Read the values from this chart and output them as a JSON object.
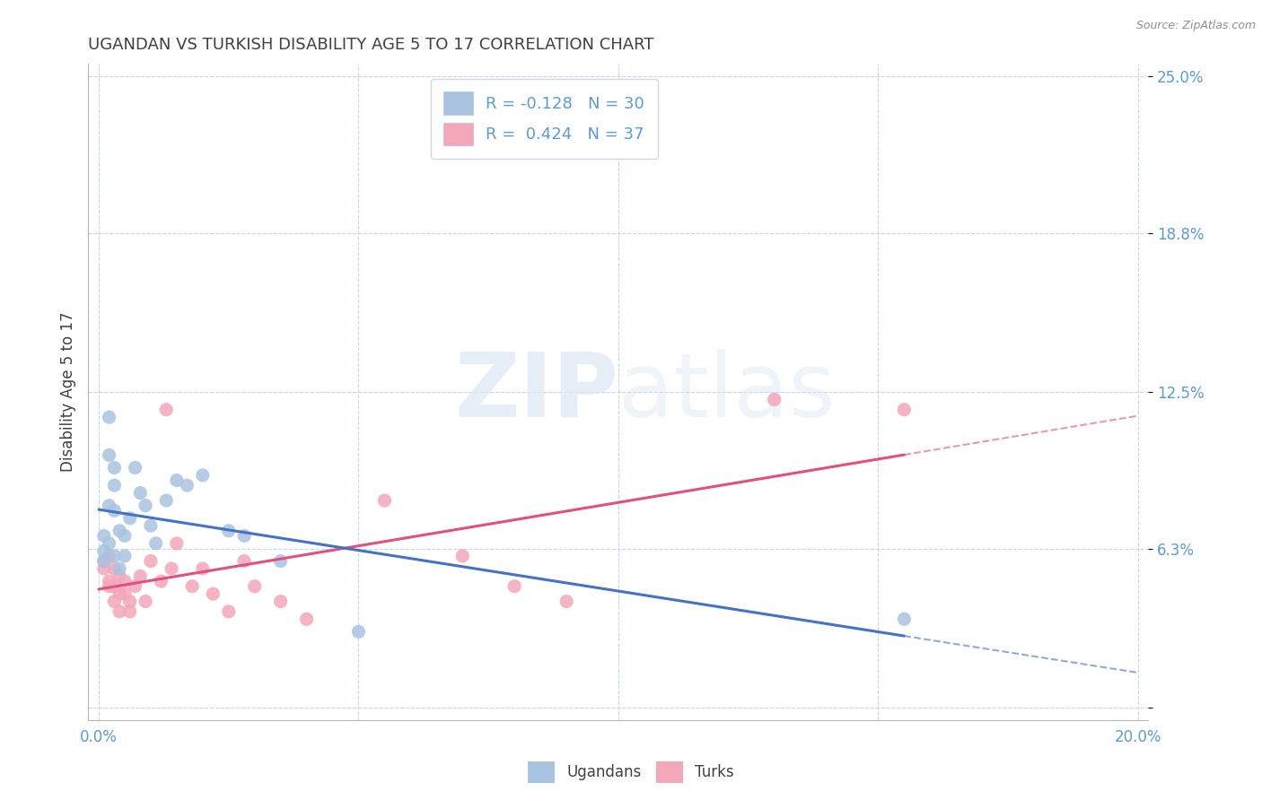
{
  "title": "UGANDAN VS TURKISH DISABILITY AGE 5 TO 17 CORRELATION CHART",
  "source": "Source: ZipAtlas.com",
  "ylabel_label": "Disability Age 5 to 17",
  "xlim": [
    -0.002,
    0.202
  ],
  "ylim": [
    -0.005,
    0.255
  ],
  "xtick_positions": [
    0.0,
    0.05,
    0.1,
    0.15,
    0.2
  ],
  "xticklabels": [
    "0.0%",
    "",
    "",
    "",
    "20.0%"
  ],
  "ytick_positions": [
    0.0,
    0.063,
    0.125,
    0.188,
    0.25
  ],
  "ytick_labels": [
    "",
    "6.3%",
    "12.5%",
    "18.8%",
    "25.0%"
  ],
  "legend_labels_bottom": [
    "Ugandans",
    "Turks"
  ],
  "ugandan_color": "#a8c4e0",
  "turkish_color": "#f4a7b9",
  "ugandan_line_color": "#4472c4",
  "turkish_line_color": "#e05080",
  "watermark": "ZIPatlas",
  "ugandan_R": -0.128,
  "ugandan_N": 30,
  "turkish_R": 0.424,
  "turkish_N": 37,
  "ugandan_points_x": [
    0.001,
    0.001,
    0.001,
    0.002,
    0.002,
    0.002,
    0.002,
    0.003,
    0.003,
    0.003,
    0.003,
    0.004,
    0.004,
    0.005,
    0.005,
    0.006,
    0.007,
    0.008,
    0.009,
    0.01,
    0.011,
    0.013,
    0.015,
    0.017,
    0.02,
    0.025,
    0.028,
    0.035,
    0.05,
    0.155
  ],
  "ugandan_points_y": [
    0.068,
    0.062,
    0.058,
    0.1,
    0.115,
    0.08,
    0.065,
    0.095,
    0.088,
    0.078,
    0.06,
    0.07,
    0.055,
    0.068,
    0.06,
    0.075,
    0.095,
    0.085,
    0.08,
    0.072,
    0.065,
    0.082,
    0.09,
    0.088,
    0.092,
    0.07,
    0.068,
    0.058,
    0.03,
    0.035
  ],
  "turkish_points_x": [
    0.001,
    0.001,
    0.002,
    0.002,
    0.002,
    0.003,
    0.003,
    0.003,
    0.004,
    0.004,
    0.004,
    0.005,
    0.005,
    0.006,
    0.006,
    0.007,
    0.008,
    0.009,
    0.01,
    0.012,
    0.013,
    0.014,
    0.015,
    0.018,
    0.02,
    0.022,
    0.025,
    0.028,
    0.03,
    0.035,
    0.04,
    0.055,
    0.07,
    0.08,
    0.09,
    0.13,
    0.155
  ],
  "turkish_points_y": [
    0.058,
    0.055,
    0.05,
    0.048,
    0.06,
    0.055,
    0.048,
    0.042,
    0.052,
    0.045,
    0.038,
    0.05,
    0.045,
    0.042,
    0.038,
    0.048,
    0.052,
    0.042,
    0.058,
    0.05,
    0.118,
    0.055,
    0.065,
    0.048,
    0.055,
    0.045,
    0.038,
    0.058,
    0.048,
    0.042,
    0.035,
    0.082,
    0.06,
    0.048,
    0.042,
    0.122,
    0.118
  ],
  "background_color": "#ffffff",
  "grid_color": "#c8d4e8",
  "title_color": "#404040",
  "axis_label_color": "#404040",
  "tick_label_color": "#5b9bd5",
  "legend_text_color": "#5b9bd5",
  "spine_color": "#b0b8c8"
}
